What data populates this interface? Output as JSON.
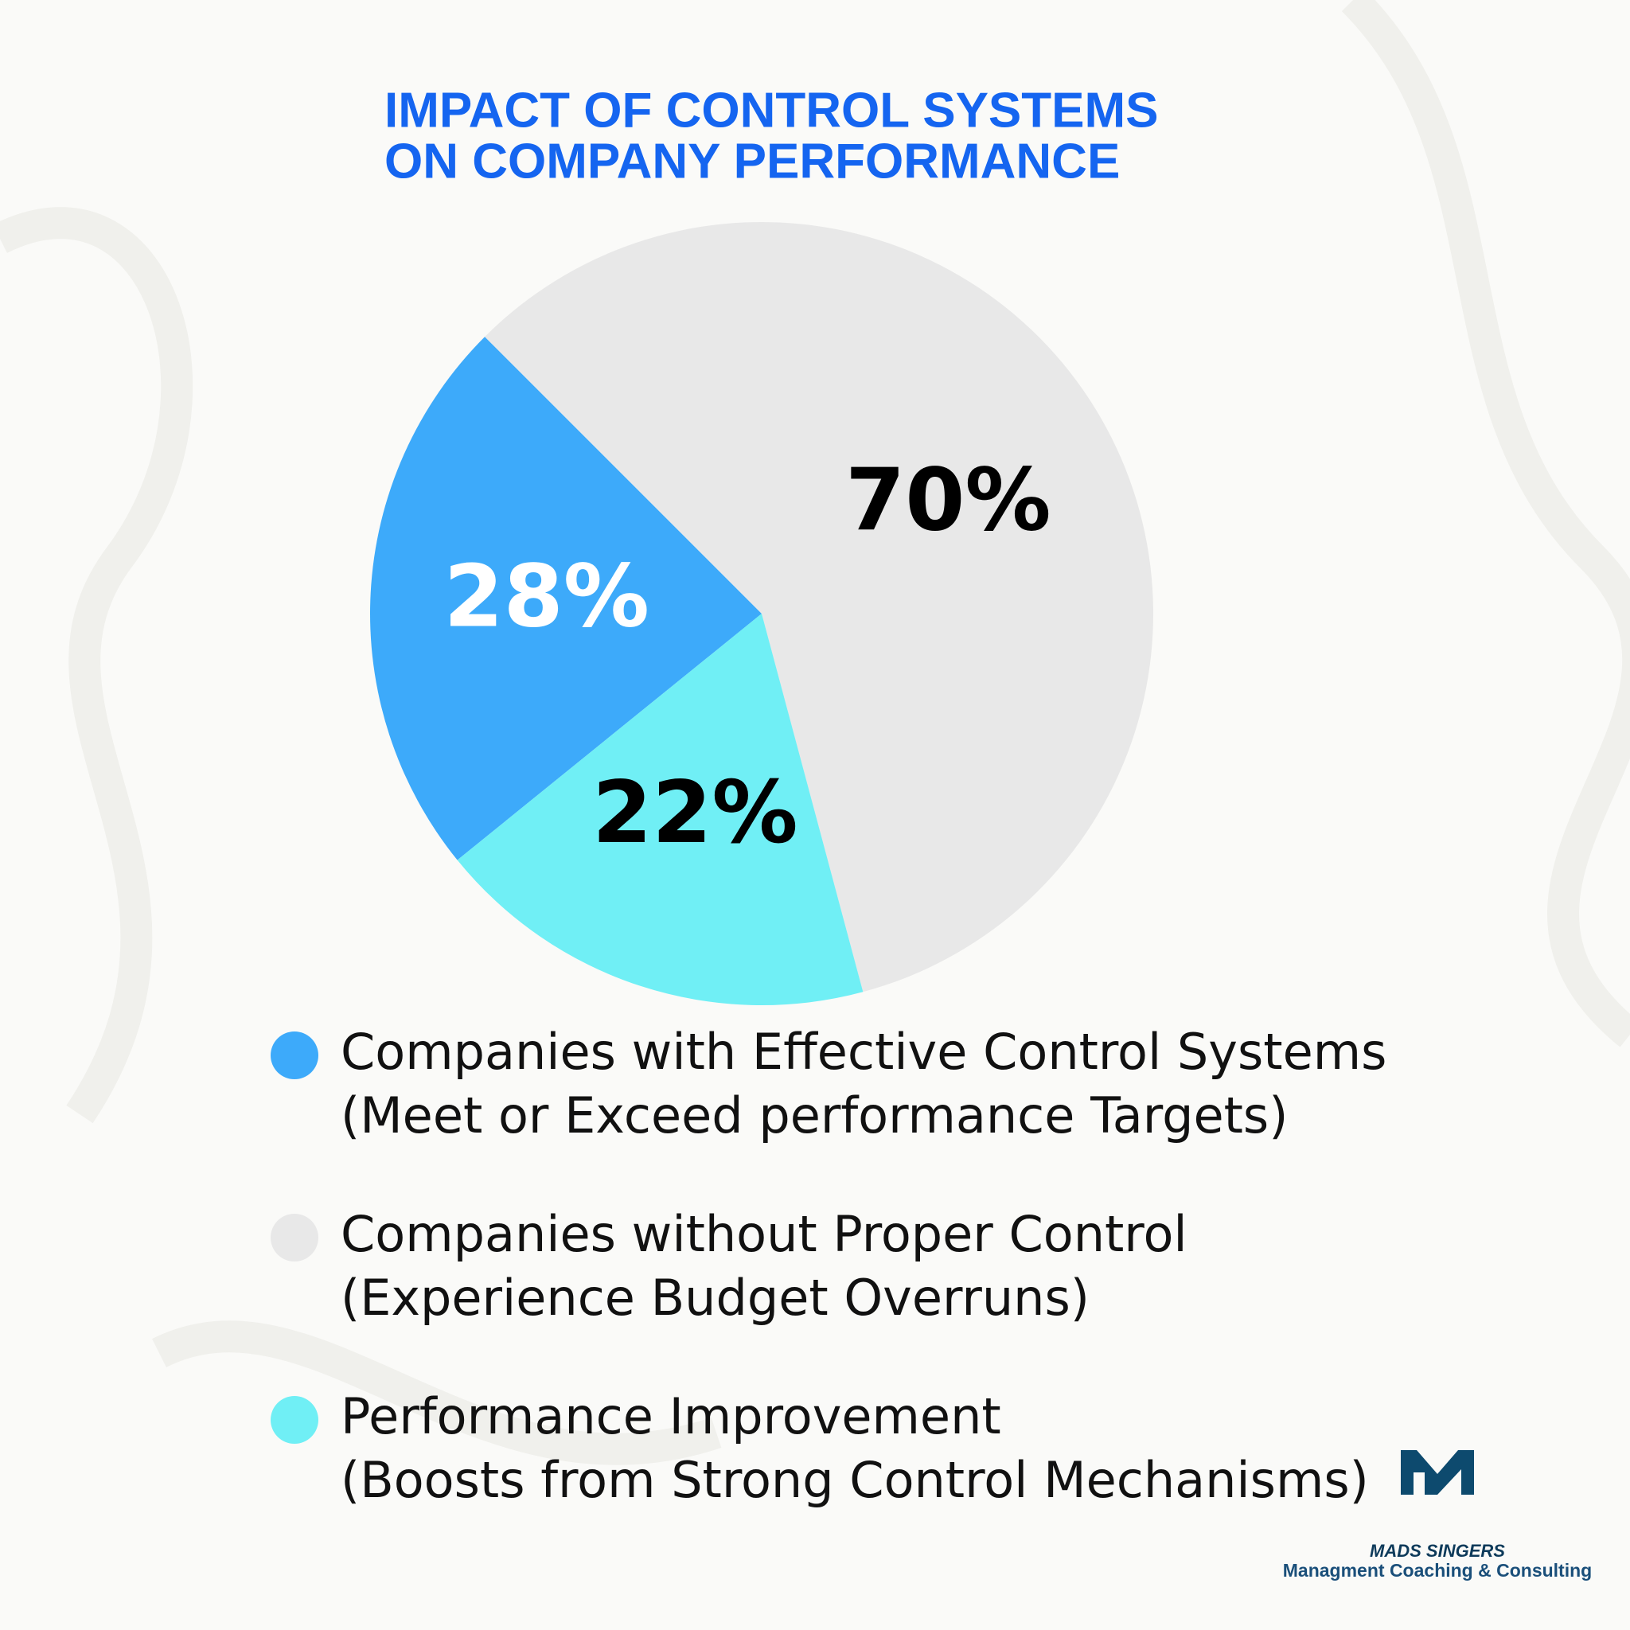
{
  "chart_data": {
    "type": "pie",
    "title": [
      "IMPACT OF CONTROL SYSTEMS",
      "ON COMPANY PERFORMANCE"
    ],
    "categories": [
      "Companies with Effective Control Systems",
      "Companies without Proper Control",
      "Performance Improvement"
    ],
    "descriptions": [
      "(Meet or Exceed performance Targets)",
      "(Experience Budget Overruns)",
      "(Boosts from Strong Control Mechanisms)"
    ],
    "values": [
      28,
      70,
      22
    ],
    "value_labels": [
      "28%",
      "70%",
      "22%"
    ],
    "colors": [
      "#3daafa",
      "#e8e8e8",
      "#70eff5"
    ],
    "value_label_colors": [
      "#ffffff",
      "#000000",
      "#000000"
    ]
  },
  "brand": {
    "name": "MADS SINGERS",
    "tagline": "Managment Coaching & Consulting"
  }
}
